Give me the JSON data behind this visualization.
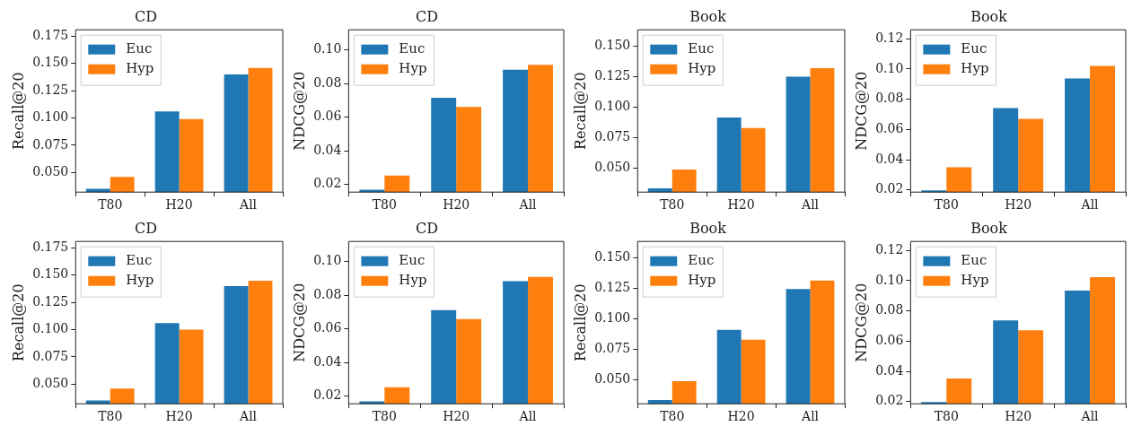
{
  "chart_data": [
    {
      "type": "bar",
      "title": "CD",
      "ylabel": "Recall@20",
      "categories": [
        "T80",
        "H20",
        "All"
      ],
      "series": [
        {
          "name": "Euc",
          "color": "#1f77b4",
          "values": [
            0.035,
            0.106,
            0.14
          ]
        },
        {
          "name": "Hyp",
          "color": "#ff7f0e",
          "values": [
            0.046,
            0.099,
            0.146
          ]
        }
      ],
      "ylim": [
        0.032,
        0.181
      ],
      "yticks": [
        {
          "value": 0.05,
          "label": "0.050"
        },
        {
          "value": 0.075,
          "label": "0.075"
        },
        {
          "value": 0.1,
          "label": "0.100"
        },
        {
          "value": 0.125,
          "label": "0.125"
        },
        {
          "value": 0.15,
          "label": "0.150"
        },
        {
          "value": 0.175,
          "label": "0.175"
        }
      ],
      "legend": "top left",
      "grid": false
    },
    {
      "type": "bar",
      "title": "CD",
      "ylabel": "NDCG@20",
      "categories": [
        "T80",
        "H20",
        "All"
      ],
      "series": [
        {
          "name": "Euc",
          "color": "#1f77b4",
          "values": [
            0.0169,
            0.0715,
            0.0882
          ]
        },
        {
          "name": "Hyp",
          "color": "#ff7f0e",
          "values": [
            0.0252,
            0.0661,
            0.0911
          ]
        }
      ],
      "ylim": [
        0.0154,
        0.112
      ],
      "yticks": [
        0.02,
        0.04,
        0.06,
        0.08,
        {
          "value": 0.1,
          "label": "0.10"
        }
      ],
      "legend": "top left",
      "grid": false
    },
    {
      "type": "bar",
      "title": "Book",
      "ylabel": "Recall@20",
      "categories": [
        "T80",
        "H20",
        "All"
      ],
      "series": [
        {
          "name": "Euc",
          "color": "#1f77b4",
          "values": [
            0.0335,
            0.0915,
            0.125
          ]
        },
        {
          "name": "Hyp",
          "color": "#ff7f0e",
          "values": [
            0.049,
            0.083,
            0.132
          ]
        }
      ],
      "ylim": [
        0.0304,
        0.1635
      ],
      "yticks": [
        {
          "value": 0.05,
          "label": "0.050"
        },
        {
          "value": 0.075,
          "label": "0.075"
        },
        {
          "value": 0.1,
          "label": "0.100"
        },
        {
          "value": 0.125,
          "label": "0.125"
        },
        {
          "value": 0.15,
          "label": "0.150"
        }
      ],
      "legend": "top left",
      "grid": false
    },
    {
      "type": "bar",
      "title": "Book",
      "ylabel": "NDCG@20",
      "categories": [
        "T80",
        "H20",
        "All"
      ],
      "series": [
        {
          "name": "Euc",
          "color": "#1f77b4",
          "values": [
            0.0196,
            0.0741,
            0.0937
          ]
        },
        {
          "name": "Hyp",
          "color": "#ff7f0e",
          "values": [
            0.035,
            0.067,
            0.102
          ]
        }
      ],
      "ylim": [
        0.0185,
        0.126
      ],
      "yticks": [
        0.02,
        0.04,
        0.06,
        0.08,
        {
          "value": 0.1,
          "label": "0.10"
        },
        0.12
      ],
      "legend": "top left",
      "grid": false
    },
    {
      "type": "bar",
      "title": "CD",
      "ylabel": "Recall@20",
      "categories": [
        "T80",
        "H20",
        "All"
      ],
      "series": [
        {
          "name": "Euc",
          "color": "#1f77b4",
          "values": [
            0.035,
            0.106,
            0.14
          ]
        },
        {
          "name": "Hyp",
          "color": "#ff7f0e",
          "values": [
            0.046,
            0.1,
            0.145
          ]
        }
      ],
      "ylim": [
        0.032,
        0.181
      ],
      "yticks": [
        {
          "value": 0.05,
          "label": "0.050"
        },
        {
          "value": 0.075,
          "label": "0.075"
        },
        {
          "value": 0.1,
          "label": "0.100"
        },
        {
          "value": 0.125,
          "label": "0.125"
        },
        {
          "value": 0.15,
          "label": "0.150"
        },
        {
          "value": 0.175,
          "label": "0.175"
        }
      ],
      "legend": "top left",
      "grid": false
    },
    {
      "type": "bar",
      "title": "CD",
      "ylabel": "NDCG@20",
      "categories": [
        "T80",
        "H20",
        "All"
      ],
      "series": [
        {
          "name": "Euc",
          "color": "#1f77b4",
          "values": [
            0.0169,
            0.0712,
            0.0884
          ]
        },
        {
          "name": "Hyp",
          "color": "#ff7f0e",
          "values": [
            0.0253,
            0.0658,
            0.0909
          ]
        }
      ],
      "ylim": [
        0.0154,
        0.112
      ],
      "yticks": [
        0.02,
        0.04,
        0.06,
        0.08,
        {
          "value": 0.1,
          "label": "0.10"
        }
      ],
      "legend": "top left",
      "grid": false
    },
    {
      "type": "bar",
      "title": "Book",
      "ylabel": "Recall@20",
      "categories": [
        "T80",
        "H20",
        "All"
      ],
      "series": [
        {
          "name": "Euc",
          "color": "#1f77b4",
          "values": [
            0.0335,
            0.091,
            0.1245
          ]
        },
        {
          "name": "Hyp",
          "color": "#ff7f0e",
          "values": [
            0.049,
            0.083,
            0.1315
          ]
        }
      ],
      "ylim": [
        0.0304,
        0.1635
      ],
      "yticks": [
        {
          "value": 0.05,
          "label": "0.050"
        },
        {
          "value": 0.075,
          "label": "0.075"
        },
        {
          "value": 0.1,
          "label": "0.100"
        },
        {
          "value": 0.125,
          "label": "0.125"
        },
        {
          "value": 0.15,
          "label": "0.150"
        }
      ],
      "legend": "top left",
      "grid": false
    },
    {
      "type": "bar",
      "title": "Book",
      "ylabel": "NDCG@20",
      "categories": [
        "T80",
        "H20",
        "All"
      ],
      "series": [
        {
          "name": "Euc",
          "color": "#1f77b4",
          "values": [
            0.0196,
            0.0737,
            0.0935
          ]
        },
        {
          "name": "Hyp",
          "color": "#ff7f0e",
          "values": [
            0.0352,
            0.0672,
            0.1023
          ]
        }
      ],
      "ylim": [
        0.0185,
        0.126
      ],
      "yticks": [
        0.02,
        0.04,
        0.06,
        0.08,
        {
          "value": 0.1,
          "label": "0.10"
        },
        0.12
      ],
      "legend": "top left",
      "grid": false
    }
  ]
}
